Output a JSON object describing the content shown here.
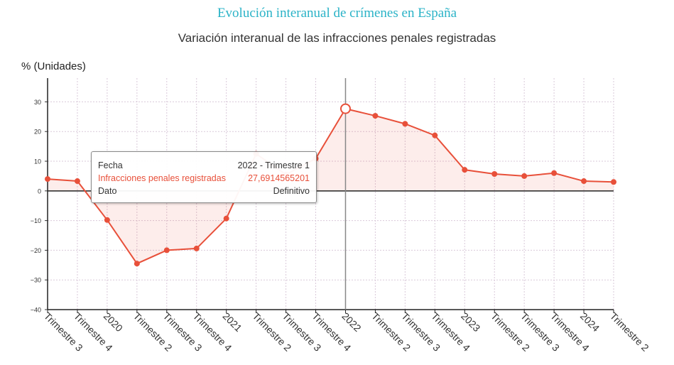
{
  "page": {
    "title": "Evolución interanual de crímenes en España"
  },
  "chart_data": {
    "type": "line",
    "title": "Variación interanual de las infracciones penales registradas",
    "y_unit": "% (Unidades)",
    "x": [
      "Trimestre 3",
      "Trimestre 4",
      "2020",
      "Trimestre 2",
      "Trimestre 3",
      "Trimestre 4",
      "2021",
      "Trimestre 2",
      "Trimestre 3",
      "Trimestre 4",
      "2022",
      "Trimestre 2",
      "Trimestre 3",
      "Trimestre 4",
      "2023",
      "Trimestre 2",
      "Trimestre 3",
      "Trimestre 4",
      "2024",
      "Trimestre 2"
    ],
    "series": [
      {
        "name": "Infracciones penales registradas",
        "color": "#e8503a",
        "values": [
          4.0,
          3.3,
          -9.8,
          -24.5,
          -20.0,
          -19.4,
          -9.3,
          12.5,
          5.5,
          10.9,
          27.69,
          25.3,
          22.6,
          18.7,
          7.1,
          5.7,
          5.0,
          6.0,
          3.3,
          3.0
        ]
      }
    ],
    "ylim": [
      -40,
      38
    ],
    "yticks": [
      -40,
      -30,
      -20,
      -10,
      0,
      10,
      20,
      30
    ],
    "ytick_labels": [
      "−40",
      "−30",
      "−20",
      "−10",
      "0",
      "10",
      "20",
      "30"
    ],
    "grid": true,
    "highlight_index": 10
  },
  "tooltip": {
    "rows": [
      {
        "label": "Fecha",
        "value": "2022 - Trimestre 1",
        "highlight": false
      },
      {
        "label": "Infracciones penales registradas",
        "value": "27,6914565201",
        "highlight": true
      },
      {
        "label": "Dato",
        "value": "Definitivo",
        "highlight": false
      }
    ]
  }
}
